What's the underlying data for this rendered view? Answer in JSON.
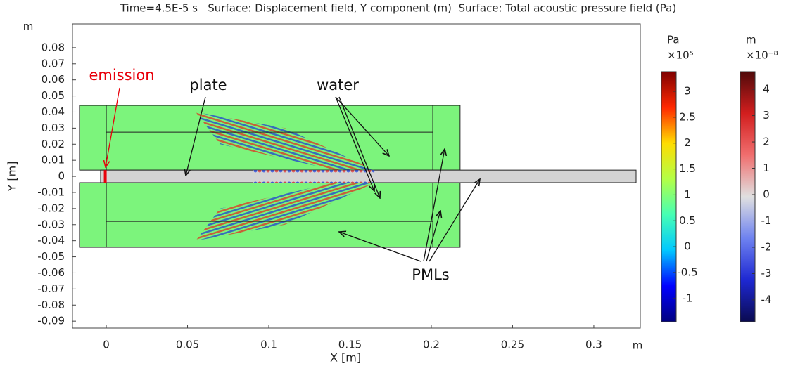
{
  "chart_data": {
    "type": "surface",
    "title": "Time=4.5E-5 s   Surface: Displacement field, Y component (m)  Surface: Total acoustic pressure field (Pa)",
    "x_label": "X [m]",
    "y_label": "Y [m]",
    "x_unit": "m",
    "y_unit": "m",
    "xlim": [
      -0.0208,
      0.3286
    ],
    "ylim": [
      -0.0943,
      0.0948
    ],
    "xticks": [
      0,
      0.05,
      0.1,
      0.15,
      0.2,
      0.25,
      0.3
    ],
    "yticks": [
      0.08,
      0.07,
      0.06,
      0.05,
      0.04,
      0.03,
      0.02,
      0.01,
      0,
      -0.01,
      -0.02,
      -0.03,
      -0.04,
      -0.05,
      -0.06,
      -0.07,
      -0.08,
      -0.09
    ],
    "annotations": [
      {
        "text": "emission",
        "color": "#e8000b"
      },
      {
        "text": "plate",
        "color": "#111111"
      },
      {
        "text": "water",
        "color": "#111111"
      },
      {
        "text": "PMLs",
        "color": "#111111"
      }
    ],
    "colorbars": [
      {
        "unit": "Pa",
        "scale_label": "×10⁵",
        "clim": [
          -1.45,
          3.38
        ],
        "ticks": [
          3,
          2.5,
          2,
          1.5,
          1,
          0.5,
          0,
          -0.5,
          -1
        ],
        "colors": [
          "#00007f",
          "#0000ff",
          "#00c8ff",
          "#46ffb4",
          "#b4ff46",
          "#ffdc00",
          "#ff2800",
          "#7f0000"
        ]
      },
      {
        "unit": "m",
        "scale_label": "×10⁻⁸",
        "clim": [
          -4.83,
          4.67
        ],
        "ticks": [
          4,
          3,
          2,
          1,
          0,
          -1,
          -2,
          -3,
          -4
        ],
        "colors": [
          "#0a0a50",
          "#1e28d2",
          "#6e82f0",
          "#e0e0e0",
          "#f06e6e",
          "#d21e1e",
          "#500a0a"
        ]
      }
    ]
  }
}
